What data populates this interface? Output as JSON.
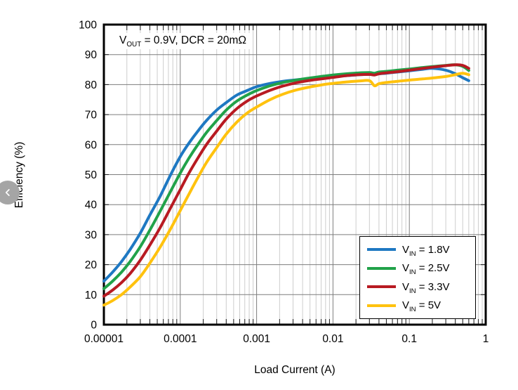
{
  "nav": {
    "prev_icon": "chevron-left"
  },
  "chart_data": {
    "type": "line",
    "title": "",
    "xlabel": "Load Current (A)",
    "ylabel": "Efficiency (%)",
    "x_scale": "log",
    "x_range": [
      1e-05,
      1
    ],
    "y_range": [
      0,
      100
    ],
    "grid": {
      "minor_color": "#cdcdcd",
      "major_color": "#7d7d7d",
      "border_color": "#000000",
      "tick_color": "#1a1a1a"
    },
    "legend": {
      "position": "bottom-right"
    },
    "annotation": {
      "base": "V",
      "sub": "OUT",
      "rest": " = 0.9V, DCR = 20mΩ"
    },
    "x_ticks": [
      {
        "value": 1e-05,
        "label": "0.00001"
      },
      {
        "value": 0.0001,
        "label": "0.0001"
      },
      {
        "value": 0.001,
        "label": "0.001"
      },
      {
        "value": 0.01,
        "label": "0.01"
      },
      {
        "value": 0.1,
        "label": "0.1"
      },
      {
        "value": 1,
        "label": "1"
      }
    ],
    "y_ticks": [
      {
        "value": 0,
        "label": "0"
      },
      {
        "value": 10,
        "label": "10"
      },
      {
        "value": 20,
        "label": "20"
      },
      {
        "value": 30,
        "label": "30"
      },
      {
        "value": 40,
        "label": "40"
      },
      {
        "value": 50,
        "label": "50"
      },
      {
        "value": 60,
        "label": "60"
      },
      {
        "value": 70,
        "label": "70"
      },
      {
        "value": 80,
        "label": "80"
      },
      {
        "value": 90,
        "label": "90"
      },
      {
        "value": 100,
        "label": "100"
      }
    ],
    "x": [
      1e-05,
      1.3e-05,
      1.7e-05,
      2.2e-05,
      3e-05,
      4e-05,
      5.5e-05,
      7.5e-05,
      0.0001,
      0.00013,
      0.00017,
      0.00022,
      0.0003,
      0.0004,
      0.00055,
      0.00075,
      0.001,
      0.0015,
      0.0022,
      0.0033,
      0.005,
      0.0075,
      0.01,
      0.015,
      0.022,
      0.03,
      0.035,
      0.04,
      0.05,
      0.07,
      0.1,
      0.15,
      0.2,
      0.3,
      0.4,
      0.5,
      0.6
    ],
    "series": [
      {
        "id": "vin-1-8v",
        "label_base": "V",
        "label_sub": "IN",
        "label_rest": " = 1.8V",
        "color": "#1E78C2",
        "values": [
          14.5,
          17.5,
          21,
          25,
          30.5,
          36.5,
          43,
          50,
          56,
          60.5,
          64.5,
          68,
          71.5,
          74,
          76.5,
          78,
          79.3,
          80.4,
          81.1,
          81.6,
          82,
          82.4,
          82.7,
          83,
          83.3,
          83.4,
          83.3,
          83.6,
          83.8,
          84.2,
          84.6,
          85.1,
          85.4,
          84.8,
          83.6,
          82.3,
          81.3
        ]
      },
      {
        "id": "vin-2-5v",
        "label_base": "V",
        "label_sub": "IN",
        "label_rest": " = 2.5V",
        "color": "#21A249",
        "values": [
          12,
          14.5,
          17.5,
          21,
          26,
          31.5,
          38,
          44.5,
          50.5,
          55.5,
          60,
          64,
          68,
          71.5,
          74.5,
          76.5,
          78,
          79.6,
          80.7,
          81.5,
          82.2,
          82.8,
          83.2,
          83.6,
          83.9,
          84,
          83.8,
          84.2,
          84.4,
          84.8,
          85.2,
          85.7,
          86,
          86.4,
          86.6,
          86.1,
          84.7
        ]
      },
      {
        "id": "vin-3-3v",
        "label_base": "V",
        "label_sub": "IN",
        "label_rest": " = 3.3V",
        "color": "#B81A22",
        "values": [
          9.5,
          11.5,
          14,
          17,
          21.5,
          26.5,
          32.5,
          39,
          45,
          50.5,
          55.5,
          60,
          64.5,
          68.5,
          72,
          74.5,
          76.2,
          78.1,
          79.5,
          80.6,
          81.4,
          82,
          82.4,
          83,
          83.3,
          83.4,
          83.2,
          83.6,
          83.9,
          84.3,
          84.8,
          85.4,
          85.8,
          86.3,
          86.6,
          86.4,
          85.4
        ]
      },
      {
        "id": "vin-5v",
        "label_base": "V",
        "label_sub": "IN",
        "label_rest": " = 5V",
        "color": "#FFC20E",
        "values": [
          6.5,
          8,
          10,
          12.5,
          16,
          20.5,
          26,
          32,
          38,
          43.5,
          49,
          54,
          59,
          63.5,
          67.5,
          70.5,
          72.5,
          75,
          76.8,
          78.2,
          79.2,
          80,
          80.4,
          80.9,
          81.2,
          81.3,
          79.6,
          80.3,
          80.7,
          81.1,
          81.5,
          81.9,
          82.2,
          82.7,
          83.3,
          83.8,
          83.3
        ]
      }
    ]
  }
}
